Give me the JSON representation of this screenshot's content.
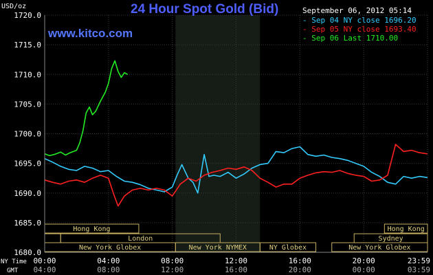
{
  "chart_data": {
    "type": "line",
    "title": "24 Hour Spot Gold (Bid)",
    "watermark": "www.kitco.com",
    "y_unit_label": "USD/oz",
    "date_label": "September 06, 2012 05:14",
    "ylim": [
      1680,
      1720
    ],
    "y_ticks": [
      "1720.0",
      "1715.0",
      "1710.0",
      "1705.0",
      "1700.0",
      "1695.0",
      "1690.0",
      "1685.0",
      "1680.0"
    ],
    "x_range_hours": [
      0,
      24
    ],
    "ny_time_label": "NY Time",
    "gmt_label": "GMT",
    "ny_ticks": [
      "00:00",
      "04:00",
      "08:00",
      "12:00",
      "16:00",
      "20:00",
      "23:59"
    ],
    "gmt_ticks": [
      "04:00",
      "08:00",
      "12:00",
      "16:00",
      "20:00",
      "00:00",
      "03:59"
    ],
    "shaded_window_hours": [
      8.2,
      13.5
    ],
    "legend": [
      {
        "label": "Sep 04 NY close 1696.20",
        "color": "#33ccff"
      },
      {
        "label": "Sep 05 NY close 1693.40",
        "color": "#ff2020"
      },
      {
        "label": "Sep 06 Last 1710.00",
        "color": "#22ee22"
      }
    ],
    "series": [
      {
        "name": "Sep 04",
        "color": "#33ccff",
        "x": [
          0,
          0.5,
          1,
          1.5,
          2,
          2.5,
          3,
          3.5,
          4,
          4.5,
          5,
          5.5,
          6,
          6.5,
          7,
          7.5,
          8,
          8.3,
          8.6,
          9,
          9.3,
          9.6,
          10,
          10.3,
          10.6,
          11,
          11.5,
          12,
          12.5,
          13,
          13.5,
          14,
          14.5,
          15,
          15.5,
          16,
          16.5,
          17,
          17.5,
          18,
          18.5,
          19,
          19.5,
          20,
          20.5,
          21,
          21.5,
          22,
          22.5,
          23,
          23.5,
          24
        ],
        "values": [
          1695.8,
          1695.2,
          1694.5,
          1694.0,
          1693.8,
          1694.5,
          1694.2,
          1693.6,
          1693.8,
          1692.8,
          1692.0,
          1691.8,
          1691.4,
          1690.8,
          1690.5,
          1690.2,
          1691.0,
          1693.0,
          1694.8,
          1692.5,
          1691.8,
          1690.0,
          1696.5,
          1692.8,
          1693.0,
          1692.8,
          1693.5,
          1692.5,
          1693.2,
          1694.2,
          1694.8,
          1695.0,
          1697.0,
          1696.8,
          1697.5,
          1697.8,
          1696.5,
          1696.2,
          1696.4,
          1696.0,
          1695.8,
          1695.5,
          1695.0,
          1694.5,
          1693.5,
          1692.8,
          1691.8,
          1691.5,
          1692.8,
          1692.5,
          1692.8,
          1692.6
        ]
      },
      {
        "name": "Sep 05",
        "color": "#ff2020",
        "x": [
          0,
          0.5,
          1,
          1.5,
          2,
          2.5,
          3,
          3.5,
          4,
          4.3,
          4.6,
          5,
          5.5,
          6,
          6.5,
          7,
          7.5,
          8,
          8.5,
          9,
          9.5,
          10,
          10.5,
          11,
          11.5,
          12,
          12.5,
          13,
          13.5,
          14,
          14.5,
          15,
          15.5,
          16,
          16.5,
          17,
          17.5,
          18,
          18.5,
          19,
          19.5,
          20,
          20.5,
          21,
          21.5,
          22,
          22.5,
          23,
          23.5,
          24
        ],
        "values": [
          1692.2,
          1691.8,
          1691.5,
          1692.0,
          1692.2,
          1691.8,
          1692.5,
          1693.0,
          1692.5,
          1690.0,
          1687.8,
          1689.5,
          1690.5,
          1690.8,
          1690.5,
          1690.8,
          1690.5,
          1689.5,
          1691.5,
          1692.5,
          1692.0,
          1693.0,
          1693.5,
          1693.8,
          1694.2,
          1694.0,
          1694.4,
          1693.8,
          1692.5,
          1691.8,
          1691.0,
          1691.5,
          1691.5,
          1692.5,
          1693.0,
          1693.4,
          1693.6,
          1693.5,
          1693.8,
          1693.3,
          1693.0,
          1692.8,
          1692.0,
          1692.2,
          1693.0,
          1698.2,
          1697.0,
          1697.2,
          1696.8,
          1696.6
        ]
      },
      {
        "name": "Sep 06",
        "color": "#22ee22",
        "x": [
          0,
          0.3,
          0.6,
          1,
          1.3,
          1.6,
          2,
          2.2,
          2.4,
          2.6,
          2.8,
          3,
          3.2,
          3.5,
          3.8,
          4,
          4.2,
          4.4,
          4.6,
          4.8,
          5,
          5.2
        ],
        "values": [
          1696.6,
          1696.3,
          1696.5,
          1696.9,
          1696.4,
          1696.8,
          1697.2,
          1698.5,
          1700.5,
          1703.5,
          1704.5,
          1703.2,
          1703.8,
          1705.5,
          1707.0,
          1708.5,
          1711.0,
          1712.3,
          1710.5,
          1709.5,
          1710.3,
          1710.0
        ]
      }
    ],
    "sessions": [
      {
        "label": "Hong Kong",
        "row": 0,
        "start": 0,
        "end": 5.9
      },
      {
        "label": "Hong Kong",
        "row": 0,
        "start": 21.3,
        "end": 24
      },
      {
        "label": "",
        "row": 1,
        "start": 0,
        "end": 1.0
      },
      {
        "label": "London",
        "row": 1,
        "start": 1.0,
        "end": 11.0
      },
      {
        "label": "Sydney",
        "row": 1,
        "start": 19.4,
        "end": 24
      },
      {
        "label": "New York Globex",
        "row": 2,
        "start": 0,
        "end": 8.2
      },
      {
        "label": "New York NYMEX",
        "row": 2,
        "start": 8.2,
        "end": 13.5
      },
      {
        "label": "NY Globex",
        "row": 2,
        "start": 13.5,
        "end": 17.0
      },
      {
        "label": "New York Globex",
        "row": 2,
        "start": 18.0,
        "end": 24
      }
    ]
  }
}
